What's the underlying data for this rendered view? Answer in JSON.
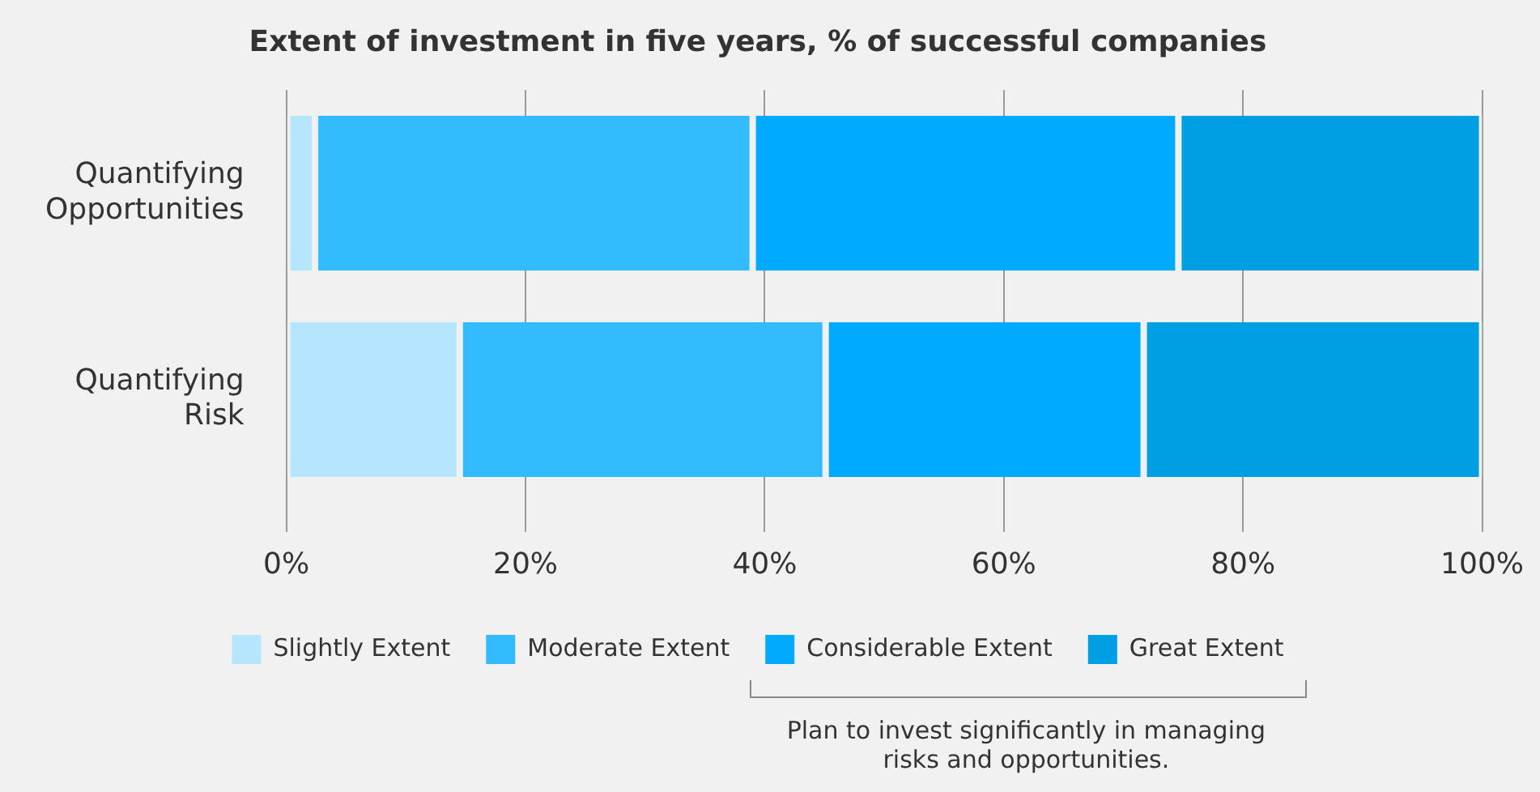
{
  "chart_data": {
    "type": "bar",
    "orientation": "horizontal",
    "stacked": true,
    "title": "Extent of investment in five years, % of successful companies",
    "categories": [
      "Quantifying Opportunities",
      "Quantifying Risk"
    ],
    "series": [
      {
        "name": "Slightly Extent",
        "color": "#b5e6fd",
        "values": [
          2.4,
          14.5
        ]
      },
      {
        "name": "Moderate Extent",
        "color": "#33bbff",
        "values": [
          36.6,
          30.6
        ]
      },
      {
        "name": "Considerable Extent",
        "color": "#00aaff",
        "values": [
          35.6,
          26.6
        ]
      },
      {
        "name": "Great Extent",
        "color": "#009fe3",
        "values": [
          25.4,
          28.3
        ]
      }
    ],
    "xlim": [
      0,
      100
    ],
    "xticks": [
      {
        "value": 0,
        "label": "0%"
      },
      {
        "value": 20,
        "label": "20%"
      },
      {
        "value": 40,
        "label": "40%"
      },
      {
        "value": 60,
        "label": "60%"
      },
      {
        "value": 80,
        "label": "80%"
      },
      {
        "value": 100,
        "label": "100%"
      }
    ],
    "grid": "x",
    "legend": "bottom",
    "annotations": [
      "Plan to invest significantly in managing risks and opportunities."
    ]
  }
}
